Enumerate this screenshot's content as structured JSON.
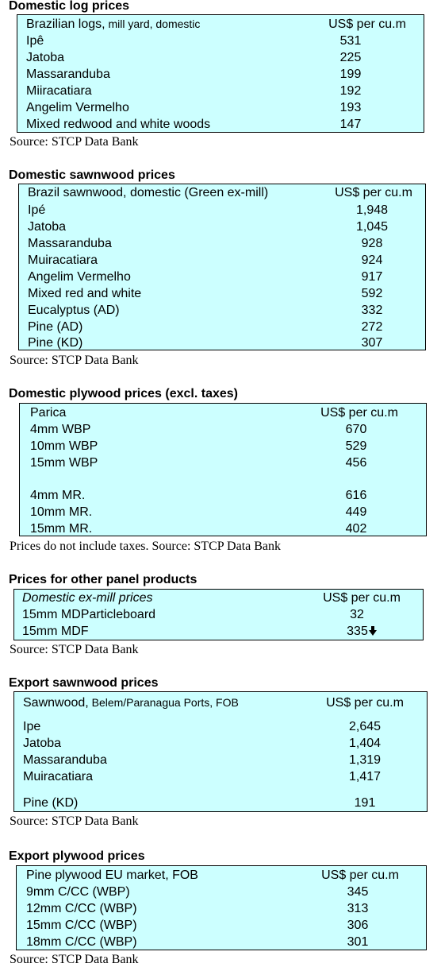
{
  "sections": [
    {
      "heading": "Domestic log prices",
      "header": {
        "label_main": "Brazilian logs,",
        "label_small": " mill yard, domestic",
        "unit": "US$ per cu.m"
      },
      "rows": [
        {
          "label": "Ipê",
          "value": "531"
        },
        {
          "label": "Jatoba",
          "value": "225"
        },
        {
          "label": "Massaranduba",
          "value": "199"
        },
        {
          "label": "Miiracatiara",
          "value": "192"
        },
        {
          "label": "Angelim Vermelho",
          "value": "193"
        },
        {
          "label": "Mixed redwood and white woods",
          "value": "147"
        }
      ],
      "source": "Source: STCP Data Bank"
    },
    {
      "heading": "Domestic sawnwood prices",
      "header": {
        "label": "Brazil sawnwood, domestic (Green ex-mill)",
        "unit": "US$ per cu.m"
      },
      "rows": [
        {
          "label": "Ipé",
          "value": "1,948"
        },
        {
          "label": "Jatoba",
          "value": "1,045"
        },
        {
          "label": "Massaranduba",
          "value": "928"
        },
        {
          "label": "Muiracatiara",
          "value": "924"
        },
        {
          "label": "Angelim Vermelho",
          "value": "917"
        },
        {
          "label": "Mixed red and white",
          "value": "592"
        },
        {
          "label": "Eucalyptus (AD)",
          "value": "332"
        },
        {
          "label": "Pine (AD)",
          "value": "272"
        },
        {
          "label": "Pine (KD)",
          "value": "307"
        }
      ],
      "source": "Source: STCP Data Bank"
    },
    {
      "heading": "Domestic plywood prices (excl. taxes)",
      "header": {
        "label": "Parica",
        "unit": "US$ per cu.m"
      },
      "rows": [
        {
          "label": "4mm WBP",
          "value": "670"
        },
        {
          "label": "10mm WBP",
          "value": "529"
        },
        {
          "label": "15mm WBP",
          "value": "456"
        },
        {
          "label": "4mm MR.",
          "value": "616"
        },
        {
          "label": "10mm MR.",
          "value": "449"
        },
        {
          "label": "15mm MR.",
          "value": "402"
        }
      ],
      "source": "Prices do not include taxes. Source: STCP Data Bank"
    },
    {
      "heading": "Prices for other panel products",
      "header": {
        "label": "Domestic ex-mill prices",
        "unit": "US$ per cu.m"
      },
      "rows": [
        {
          "label": "15mm MDParticleboard",
          "value": "32"
        },
        {
          "label": "15mm MDF",
          "value": "335",
          "trend": "down-arrow-icon"
        }
      ],
      "source": "Source: STCP Data Bank"
    },
    {
      "heading": "Export sawnwood prices",
      "header": {
        "label_main": "Sawnwood,",
        "label_small": " Belem/Paranagua Ports, FOB",
        "unit": "US$ per cu.m"
      },
      "rows": [
        {
          "label": "Ipe",
          "value": "2,645"
        },
        {
          "label": "Jatoba",
          "value": "1,404"
        },
        {
          "label": "Massaranduba",
          "value": "1,319"
        },
        {
          "label": "Muiracatiara",
          "value": "1,417"
        },
        {
          "label": "Pine (KD)",
          "value": "191"
        }
      ],
      "source": "Source: STCP Data Bank"
    },
    {
      "heading": "Export plywood prices",
      "header": {
        "label": "Pine plywood EU market, FOB",
        "unit": "US$ per cu.m"
      },
      "rows": [
        {
          "label": "9mm C/CC (WBP)",
          "value": "345"
        },
        {
          "label": "12mm C/CC (WBP)",
          "value": "313"
        },
        {
          "label": "15mm C/CC (WBP)",
          "value": "306"
        },
        {
          "label": "18mm C/CC (WBP)",
          "value": "301"
        }
      ],
      "source": "Source: STCP Data Bank"
    }
  ],
  "colors": {
    "box_fill": "#ccffff",
    "border": "#000000"
  }
}
